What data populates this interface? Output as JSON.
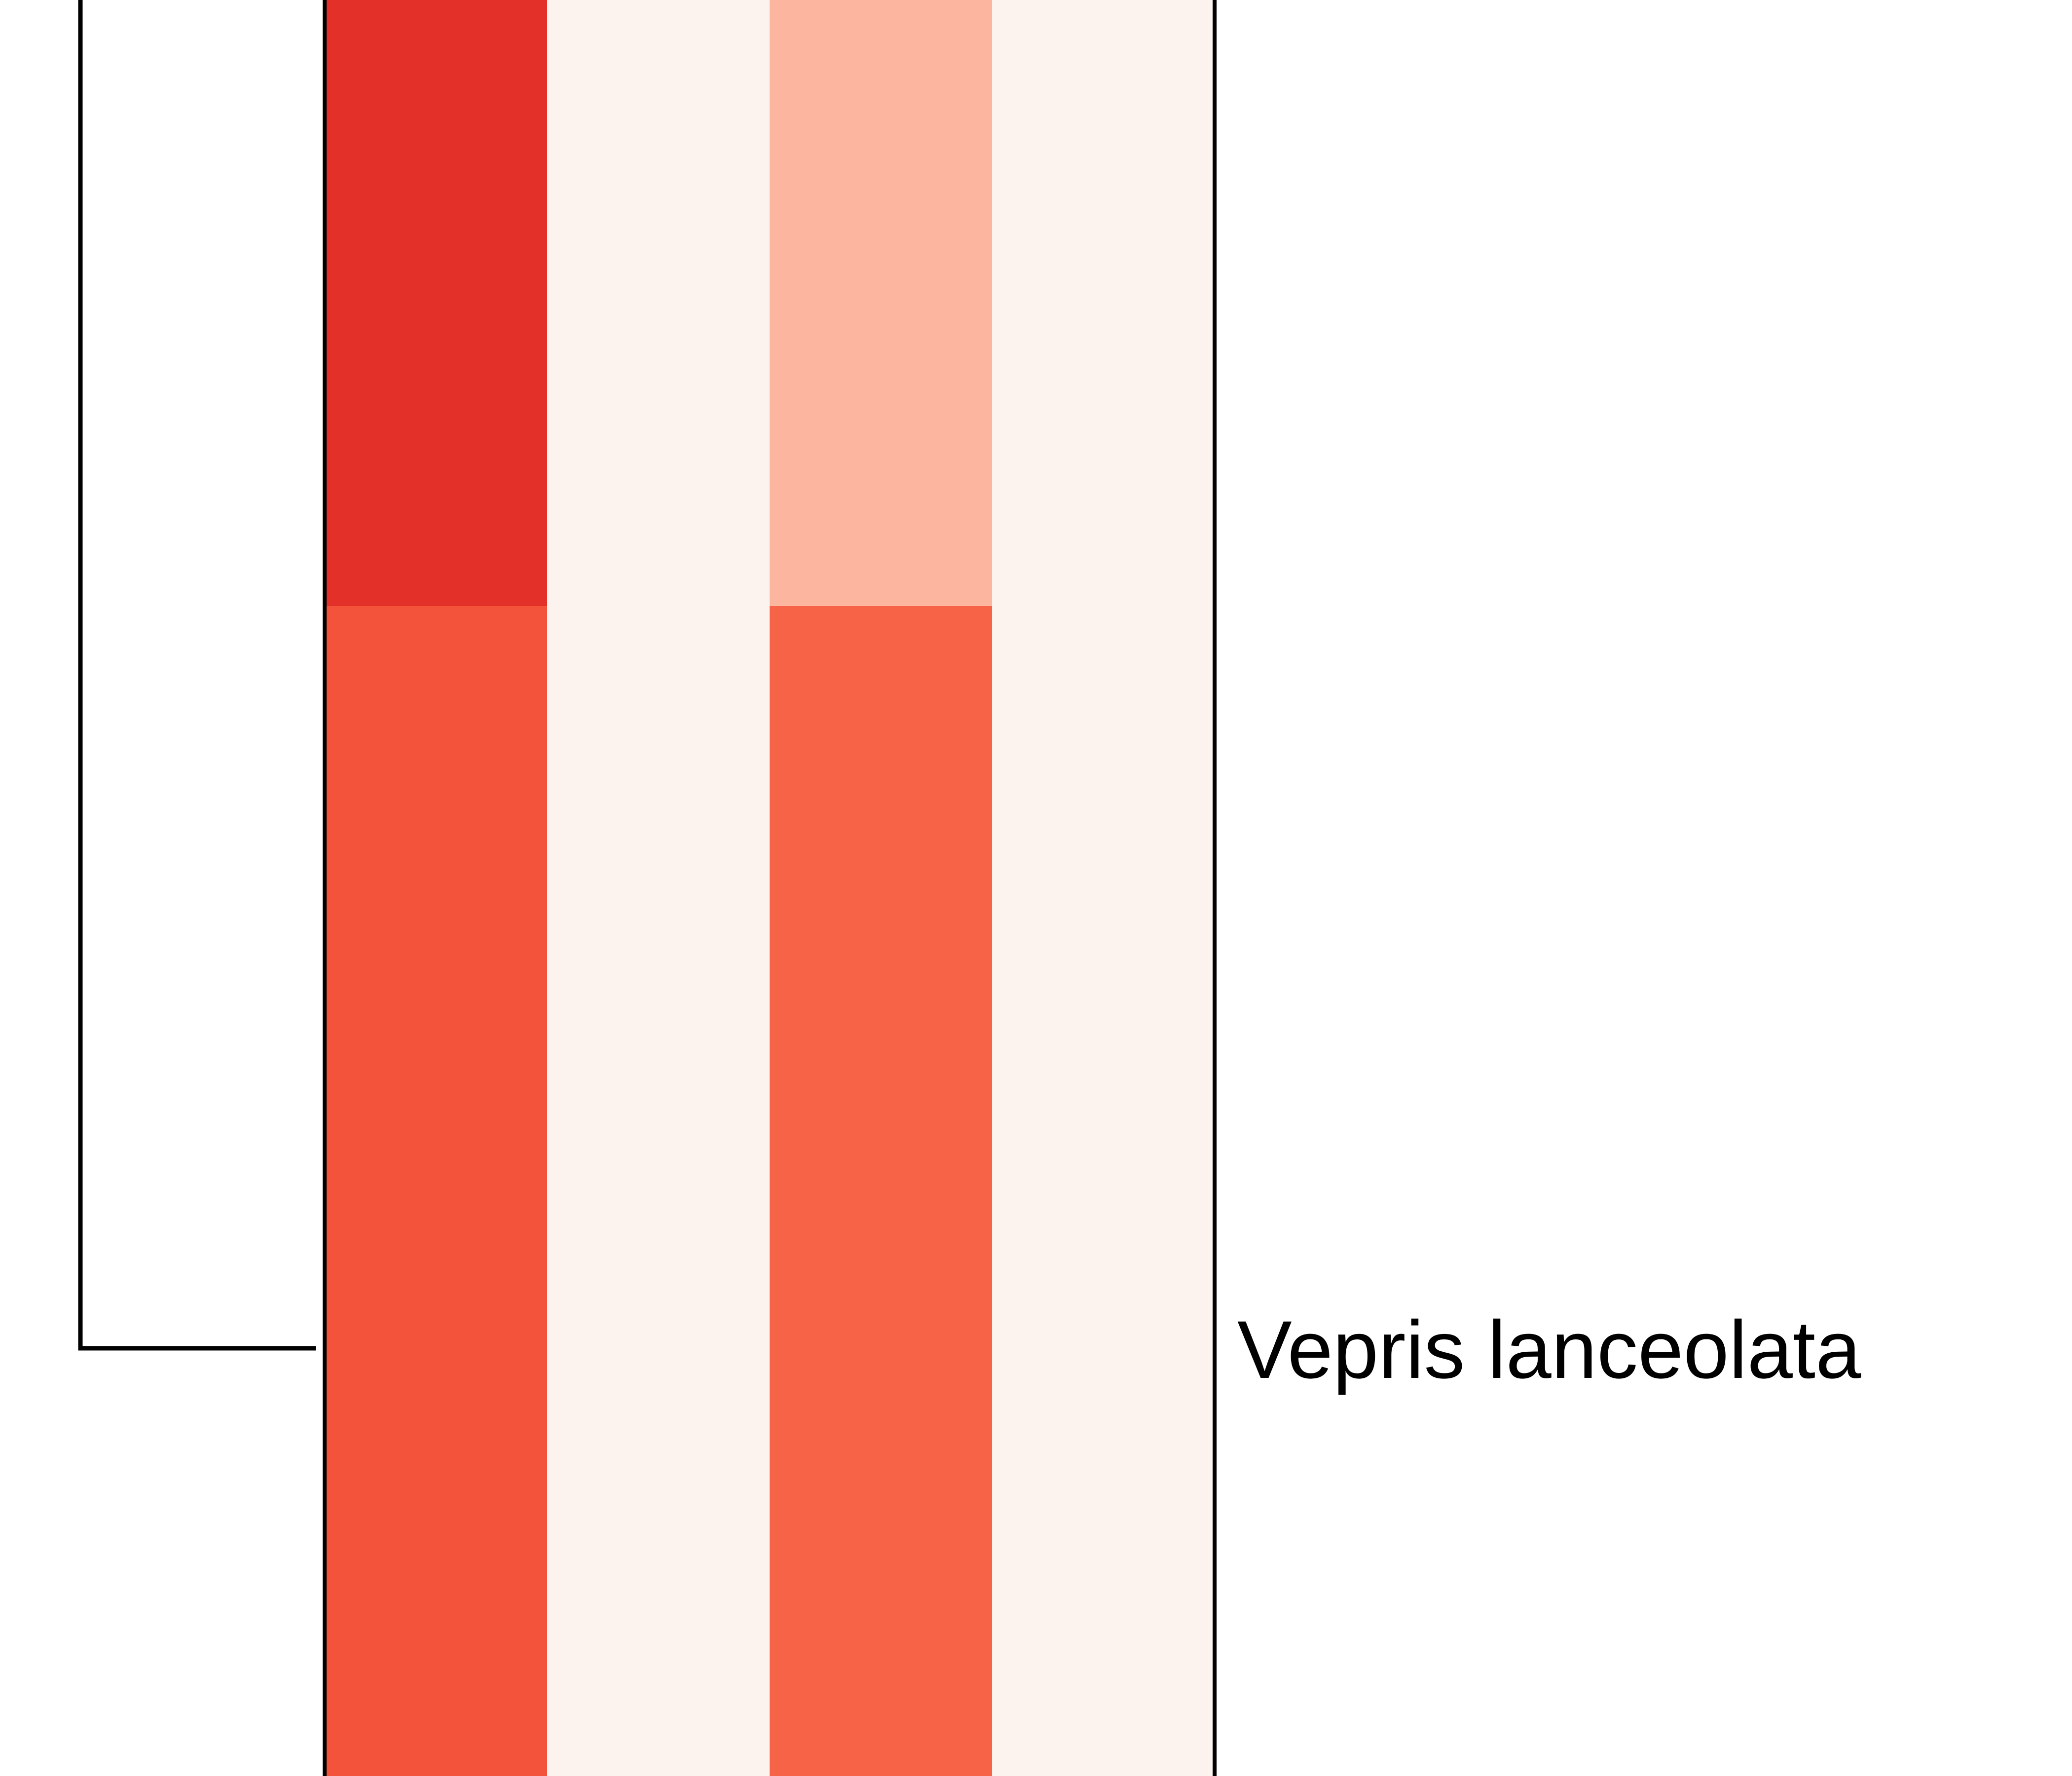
{
  "chart_data": {
    "type": "heatmap",
    "title": "",
    "columns": 4,
    "rows": [
      {
        "label": "",
        "cells": [
          "#e3312a",
          "#fdf3ee",
          "#fcb69f",
          "#fdf3ee"
        ]
      },
      {
        "label": "Vepris lanceolata",
        "cells": [
          "#f3533b",
          "#fdf3ee",
          "#f66347",
          "#fdf3ee"
        ]
      }
    ],
    "tree": {
      "type": "dendrogram",
      "visible_tips": [
        "Vepris lanceolata"
      ]
    },
    "grid": false,
    "legend": "none"
  }
}
